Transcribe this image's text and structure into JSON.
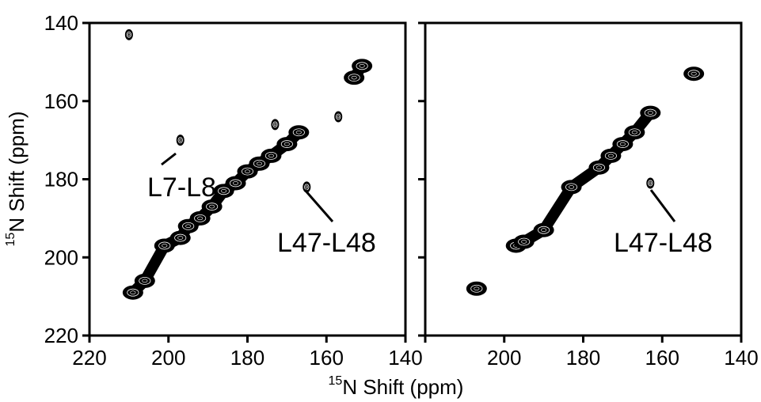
{
  "chart_data": [
    {
      "type": "scatter",
      "panel": "left",
      "xlabel_sup": "15",
      "xlabel": "N Shift (ppm)",
      "ylabel_sup": "15",
      "ylabel": "N Shift (ppm)",
      "xlim": [
        220,
        140
      ],
      "ylim": [
        140,
        220
      ],
      "x_reversed": true,
      "y_reversed": true,
      "xticks": [
        220,
        200,
        180,
        160,
        140
      ],
      "yticks": [
        140,
        160,
        180,
        200,
        220
      ],
      "grid": false,
      "series": [
        {
          "points": [
            {
              "x": 210,
              "y": 143
            },
            {
              "x": 209,
              "y": 209
            },
            {
              "x": 206,
              "y": 206
            },
            {
              "x": 201,
              "y": 197
            },
            {
              "x": 197,
              "y": 195
            },
            {
              "x": 197,
              "y": 170
            },
            {
              "x": 195,
              "y": 192
            },
            {
              "x": 192,
              "y": 190
            },
            {
              "x": 189,
              "y": 187
            },
            {
              "x": 186,
              "y": 183
            },
            {
              "x": 183,
              "y": 181
            },
            {
              "x": 180,
              "y": 178
            },
            {
              "x": 177,
              "y": 176
            },
            {
              "x": 174,
              "y": 174
            },
            {
              "x": 173,
              "y": 166
            },
            {
              "x": 170,
              "y": 171
            },
            {
              "x": 167,
              "y": 168
            },
            {
              "x": 165,
              "y": 182
            },
            {
              "x": 157,
              "y": 164
            },
            {
              "x": 153,
              "y": 154
            },
            {
              "x": 151,
              "y": 151
            }
          ]
        }
      ],
      "annotations": [
        {
          "text": "L7-L8",
          "x": 197,
          "y": 170
        },
        {
          "text": "L47-L48",
          "x": 165,
          "y": 182
        }
      ]
    },
    {
      "type": "scatter",
      "panel": "right",
      "xlim": [
        220,
        140
      ],
      "ylim": [
        140,
        220
      ],
      "x_reversed": true,
      "y_reversed": true,
      "xticks": [
        220,
        200,
        180,
        160,
        140
      ],
      "xtick_labels": [
        "",
        "200",
        "180",
        "160",
        "140"
      ],
      "yticks": [
        140,
        160,
        180,
        200,
        220
      ],
      "grid": false,
      "series": [
        {
          "points": [
            {
              "x": 207,
              "y": 208
            },
            {
              "x": 197,
              "y": 197
            },
            {
              "x": 195,
              "y": 196
            },
            {
              "x": 190,
              "y": 193
            },
            {
              "x": 183,
              "y": 182
            },
            {
              "x": 176,
              "y": 177
            },
            {
              "x": 173,
              "y": 174
            },
            {
              "x": 170,
              "y": 171
            },
            {
              "x": 167,
              "y": 168
            },
            {
              "x": 163,
              "y": 163
            },
            {
              "x": 163,
              "y": 181
            },
            {
              "x": 152,
              "y": 153
            }
          ]
        }
      ],
      "annotations": [
        {
          "text": "L47-L48",
          "x": 163,
          "y": 181
        }
      ]
    }
  ]
}
